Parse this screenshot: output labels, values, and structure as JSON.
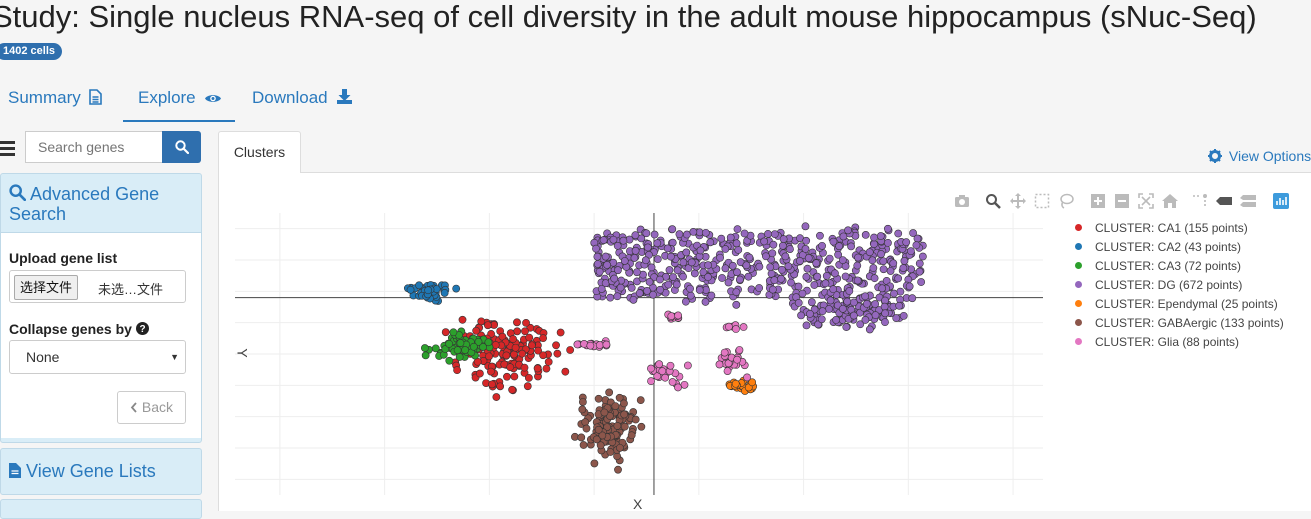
{
  "study": {
    "title": "Study: Single nucleus RNA-seq of cell diversity in the adult mouse hippocampus (sNuc-Seq)",
    "cell_badge": "1402 cells"
  },
  "nav": {
    "tabs": [
      {
        "label": "Summary",
        "icon": "file-text-icon"
      },
      {
        "label": "Explore",
        "icon": "eye-icon",
        "active": true
      },
      {
        "label": "Download",
        "icon": "download-icon"
      }
    ]
  },
  "sidebar": {
    "search": {
      "placeholder": "Search genes",
      "icon": "search-icon"
    },
    "advanced": {
      "title": "Advanced Gene Search",
      "upload_label": "Upload gene list",
      "file_button": "选择文件",
      "file_status": "未选…文件",
      "collapse_label": "Collapse genes by",
      "collapse_value": "None",
      "back_label": "Back"
    },
    "gene_lists": {
      "title": "View Gene Lists"
    }
  },
  "main": {
    "tab": "Clusters",
    "view_options": "View Options"
  },
  "colors": {
    "accent": "#2a79bd",
    "badge": "#2f6fae",
    "panel_bg": "#d9edf7"
  },
  "chart_data": {
    "type": "scatter",
    "title": "",
    "xlabel": "X",
    "ylabel": "Y",
    "grid": true,
    "legend_position": "right",
    "series": [
      {
        "name": "CLUSTER: CA1 (155 points)",
        "color": "#d62728",
        "count": 155,
        "center": [
          -10,
          -4
        ],
        "spread": [
          2.6,
          3.2
        ]
      },
      {
        "name": "CLUSTER: CA2 (43 points)",
        "color": "#1f77b4",
        "count": 43,
        "center": [
          -15,
          4
        ],
        "spread": [
          1.1,
          0.9
        ]
      },
      {
        "name": "CLUSTER: CA3 (72 points)",
        "color": "#2ca02c",
        "count": 72,
        "center": [
          -13,
          -3
        ],
        "spread": [
          1.6,
          1.4
        ]
      },
      {
        "name": "CLUSTER: DG (672 points)",
        "color": "#9467bd",
        "count": 672,
        "center": [
          3,
          6
        ],
        "spread": [
          9,
          5
        ]
      },
      {
        "name": "CLUSTER: Ependymal (25 points)",
        "color": "#ff7f0e",
        "count": 25,
        "center": [
          6,
          -8
        ],
        "spread": [
          0.8,
          0.5
        ]
      },
      {
        "name": "CLUSTER: GABAergic (133 points)",
        "color": "#8c564b",
        "count": 133,
        "center": [
          -3,
          -13
        ],
        "spread": [
          1.6,
          3.6
        ]
      },
      {
        "name": "CLUSTER: Glia (88 points)",
        "color": "#e377c2",
        "count": 88,
        "center": [
          1,
          -5
        ],
        "spread": [
          2,
          3
        ]
      }
    ]
  }
}
